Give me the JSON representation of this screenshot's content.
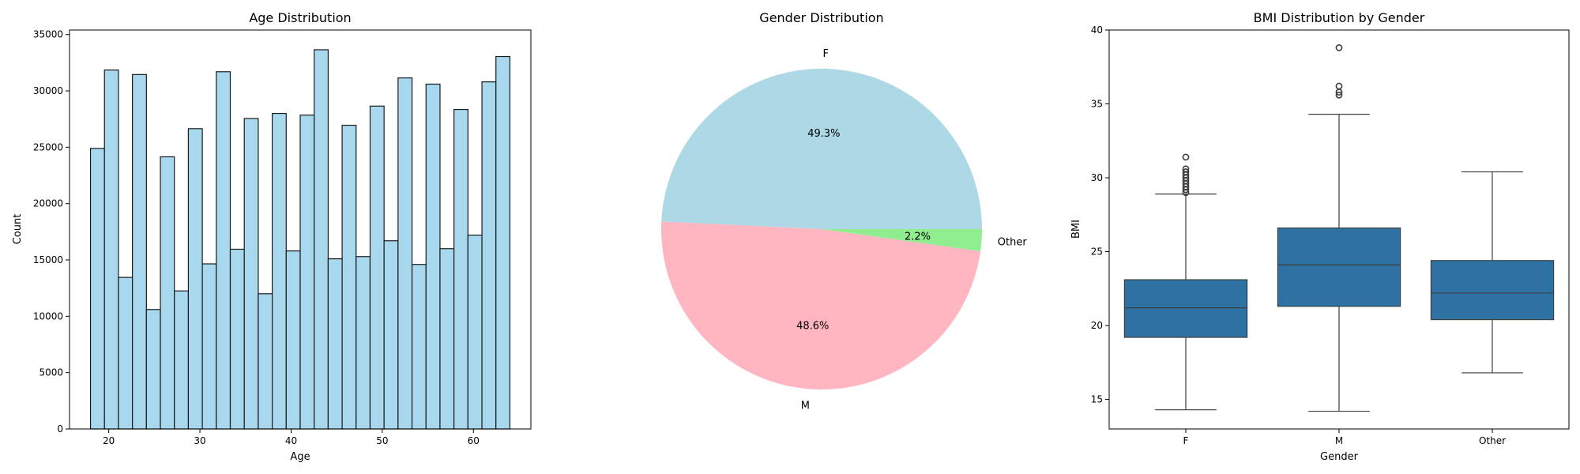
{
  "chart_data": [
    {
      "type": "bar",
      "title": "Age Distribution",
      "xlabel": "Age",
      "ylabel": "Count",
      "xlim": [
        15.7,
        66.3
      ],
      "ylim": [
        0,
        35400
      ],
      "xticks": [
        20,
        30,
        40,
        50,
        60
      ],
      "yticks": [
        0,
        5000,
        10000,
        15000,
        20000,
        25000,
        30000,
        35000
      ],
      "bin_start": 18,
      "bin_width": 1.5333,
      "values": [
        24900,
        31850,
        13450,
        31450,
        10600,
        24150,
        12250,
        26650,
        14650,
        31700,
        15950,
        27550,
        12000,
        28000,
        15800,
        27850,
        33650,
        15100,
        26950,
        15300,
        28650,
        16700,
        31150,
        14600,
        30600,
        16000,
        28350,
        17200,
        30800,
        33050
      ],
      "colors": {
        "fill": "#a8d8ee",
        "edge": "#1a1a1a"
      }
    },
    {
      "type": "pie",
      "title": "Gender Distribution",
      "labels": [
        "F",
        "M",
        "Other"
      ],
      "values": [
        49.3,
        48.6,
        2.2
      ],
      "value_labels": [
        "49.3%",
        "48.6%",
        "2.2%"
      ],
      "colors": [
        "#add8e6",
        "#ffb6c1",
        "#90ee90"
      ]
    },
    {
      "type": "box",
      "title": "BMI Distribution by Gender",
      "xlabel": "Gender",
      "ylabel": "BMI",
      "categories": [
        "F",
        "M",
        "Other"
      ],
      "ylim": [
        13.0,
        40.0
      ],
      "yticks": [
        15,
        20,
        25,
        30,
        35,
        40
      ],
      "boxes": [
        {
          "whisker_low": 14.3,
          "q1": 19.2,
          "median": 21.2,
          "q3": 23.1,
          "whisker_high": 28.9,
          "outliers": [
            29.0,
            29.2,
            29.4,
            29.6,
            29.8,
            30.0,
            30.2,
            30.4,
            30.6,
            31.4
          ]
        },
        {
          "whisker_low": 14.2,
          "q1": 21.3,
          "median": 24.1,
          "q3": 26.6,
          "whisker_high": 34.3,
          "outliers": [
            35.6,
            35.8,
            36.2,
            38.8
          ]
        },
        {
          "whisker_low": 16.8,
          "q1": 20.4,
          "median": 22.2,
          "q3": 24.4,
          "whisker_high": 30.4,
          "outliers": []
        }
      ],
      "colors": {
        "box": "#2e72a3",
        "line": "#3d3d3d"
      }
    }
  ]
}
